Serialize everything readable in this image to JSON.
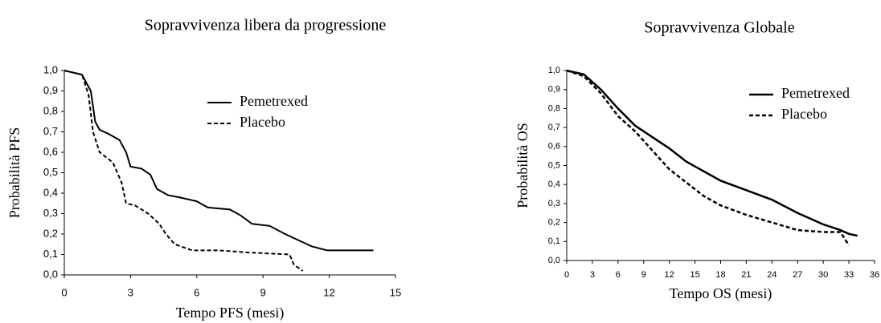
{
  "chart_data": [
    {
      "type": "line",
      "title": "Sopravvivenza libera da progressione",
      "xlabel": "Tempo PFS (mesi)",
      "ylabel": "Probabilità PFS",
      "xlim": [
        0,
        15
      ],
      "xticks": [
        0,
        3,
        6,
        9,
        12,
        15
      ],
      "ylim": [
        0,
        1
      ],
      "yticks": [
        {
          "value": 0,
          "label": "0,0"
        },
        {
          "value": 0.1,
          "label": "0,1"
        },
        {
          "value": 0.2,
          "label": "0,2"
        },
        {
          "value": 0.3,
          "label": "0,3"
        },
        {
          "value": 0.4,
          "label": "0,4"
        },
        {
          "value": 0.5,
          "label": "0,5"
        },
        {
          "value": 0.6,
          "label": "0,6"
        },
        {
          "value": 0.7,
          "label": "0,7"
        },
        {
          "value": 0.8,
          "label": "0,8"
        },
        {
          "value": 0.9,
          "label": "0,9"
        },
        {
          "value": 1,
          "label": "1,0"
        }
      ],
      "series": [
        {
          "name": "Pemetrexed",
          "color": "#000000",
          "dash": false,
          "x": [
            0,
            0.8,
            1.2,
            1.4,
            1.6,
            2,
            2.5,
            2.8,
            3,
            3.5,
            3.9,
            4.2,
            4.7,
            5.2,
            6,
            6.5,
            7.5,
            8,
            8.5,
            9.3,
            10,
            10.6,
            11.2,
            11.9,
            14
          ],
          "values": [
            1,
            0.98,
            0.9,
            0.75,
            0.71,
            0.69,
            0.66,
            0.6,
            0.53,
            0.52,
            0.49,
            0.42,
            0.39,
            0.38,
            0.36,
            0.33,
            0.32,
            0.29,
            0.25,
            0.24,
            0.2,
            0.17,
            0.14,
            0.12,
            0.12
          ]
        },
        {
          "name": "Placebo",
          "color": "#000000",
          "dash": true,
          "x": [
            0,
            0.8,
            1.1,
            1.3,
            1.6,
            2.2,
            2.6,
            2.8,
            3.2,
            3.8,
            4.3,
            4.6,
            5,
            5.8,
            7,
            8.3,
            10.2,
            10.4,
            10.8
          ],
          "values": [
            1,
            0.98,
            0.88,
            0.7,
            0.6,
            0.55,
            0.45,
            0.35,
            0.34,
            0.3,
            0.25,
            0.2,
            0.15,
            0.12,
            0.12,
            0.11,
            0.1,
            0.05,
            0.02
          ]
        }
      ]
    },
    {
      "type": "line",
      "title": "Sopravvivenza Globale",
      "xlabel": "Tempo OS (mesi)",
      "ylabel": "Probabilità OS",
      "xlim": [
        0,
        36
      ],
      "xticks": [
        0,
        3,
        6,
        9,
        12,
        15,
        18,
        21,
        24,
        27,
        30,
        33,
        36
      ],
      "ylim": [
        0,
        1
      ],
      "yticks": [
        {
          "value": 0,
          "label": "0,0"
        },
        {
          "value": 0.1,
          "label": "0,1"
        },
        {
          "value": 0.2,
          "label": "0,2"
        },
        {
          "value": 0.3,
          "label": "0,3"
        },
        {
          "value": 0.4,
          "label": "0,4"
        },
        {
          "value": 0.5,
          "label": "0,5"
        },
        {
          "value": 0.6,
          "label": "0,6"
        },
        {
          "value": 0.7,
          "label": "0,7"
        },
        {
          "value": 0.8,
          "label": "0,8"
        },
        {
          "value": 0.9,
          "label": "0,9"
        },
        {
          "value": 1,
          "label": "1,0"
        }
      ],
      "series": [
        {
          "name": "Pemetrexed",
          "color": "#000000",
          "dash": false,
          "x": [
            0,
            2,
            4,
            6,
            8,
            10,
            12,
            14,
            16,
            18,
            21,
            24,
            27,
            30,
            32,
            33,
            34
          ],
          "values": [
            1,
            0.98,
            0.9,
            0.8,
            0.71,
            0.65,
            0.59,
            0.52,
            0.47,
            0.42,
            0.37,
            0.32,
            0.25,
            0.19,
            0.16,
            0.14,
            0.13
          ]
        },
        {
          "name": "Placebo",
          "color": "#000000",
          "dash": true,
          "x": [
            0,
            2,
            4,
            6,
            8,
            10,
            12,
            14,
            16,
            18,
            21,
            24,
            27,
            30,
            32,
            33
          ],
          "values": [
            1,
            0.97,
            0.88,
            0.76,
            0.68,
            0.58,
            0.48,
            0.41,
            0.34,
            0.29,
            0.24,
            0.2,
            0.16,
            0.15,
            0.15,
            0.08
          ]
        }
      ]
    }
  ]
}
